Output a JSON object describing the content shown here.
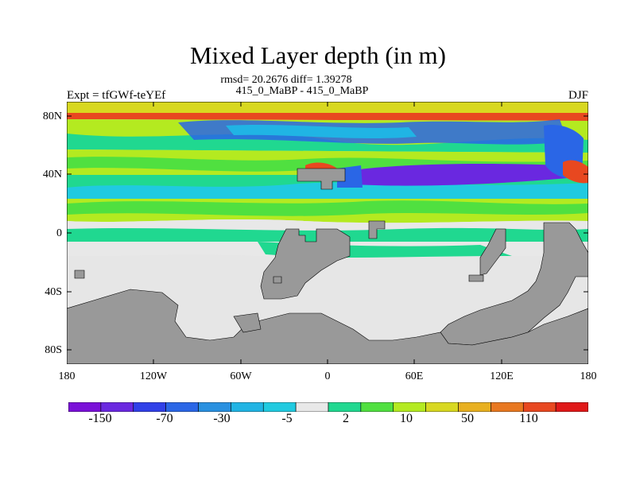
{
  "title": "Mixed Layer depth (in m)",
  "stats_line": "rmsd= 20.2676 diff= 1.39278",
  "subtitle_line": "415_0_MaBP - 415_0_MaBP",
  "left_label": "Expt = tfGWf-teYEf",
  "right_label": "DJF",
  "colors": {
    "land": "#999999",
    "near_zero": "#e6e6e6",
    "colorbar": [
      "#7a10d8",
      "#6a28e0",
      "#3040e8",
      "#2a66e6",
      "#2890e0",
      "#20b4e4",
      "#20cae0",
      "#e8e8e8",
      "#20d890",
      "#50e040",
      "#b4ea20",
      "#d8d820",
      "#e8b020",
      "#e87820",
      "#e84820",
      "#e01818"
    ]
  },
  "map": {
    "x_ticks": [
      "180",
      "120W",
      "60W",
      "0",
      "60E",
      "120E",
      "180"
    ],
    "y_ticks": [
      "80N",
      "40N",
      "0",
      "40S",
      "80S"
    ]
  },
  "colorbar": {
    "labels": [
      "-150",
      "-70",
      "-30",
      "-5",
      "2",
      "10",
      "50",
      "110"
    ]
  }
}
